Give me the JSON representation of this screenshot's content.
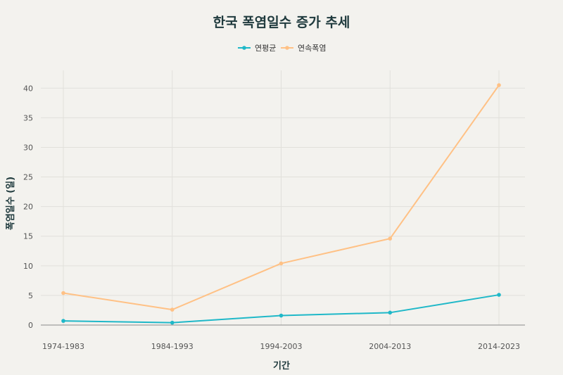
{
  "chart_data": {
    "type": "line",
    "title": "한국 폭염일수 증가 추세",
    "xlabel": "기간",
    "ylabel": "폭염일수 (일)",
    "categories": [
      "1974-1983",
      "1984-1993",
      "1994-2003",
      "2004-2013",
      "2014-2023"
    ],
    "ylim": [
      0,
      43
    ],
    "yticks": [
      0,
      5,
      10,
      15,
      20,
      25,
      30,
      35,
      40
    ],
    "grid": true,
    "legend_position": "top-center",
    "series": [
      {
        "name": "연평균",
        "color": "#1fb8c8",
        "values": [
          0.7,
          0.4,
          1.6,
          2.1,
          5.1
        ]
      },
      {
        "name": "연속폭염",
        "color": "#ffc185",
        "values": [
          5.4,
          2.6,
          10.4,
          14.6,
          40.5
        ]
      }
    ]
  }
}
